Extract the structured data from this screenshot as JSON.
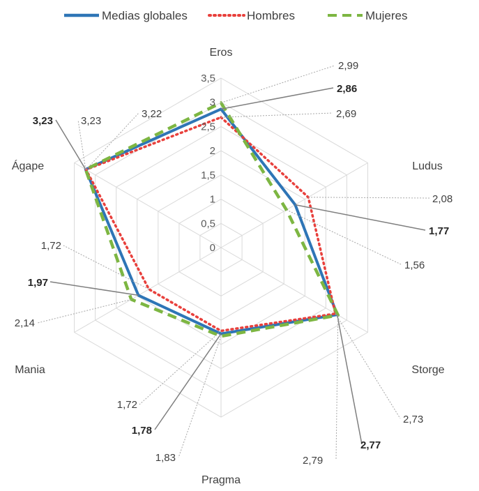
{
  "chart_data": {
    "type": "radar",
    "categories": [
      "Eros",
      "Ludus",
      "Storge",
      "Pragma",
      "Mania",
      "Ágape"
    ],
    "rlim": [
      0,
      3.5
    ],
    "ticks": [
      "0",
      "0,5",
      "1",
      "1,5",
      "2",
      "2,5",
      "3",
      "3,5"
    ],
    "grid": true,
    "legend_position": "top",
    "series": [
      {
        "name": "Medias globales",
        "values": [
          2.86,
          1.77,
          2.77,
          1.78,
          1.97,
          3.23
        ],
        "color": "#2E75B6",
        "style": "solid"
      },
      {
        "name": "Hombres",
        "values": [
          2.69,
          2.08,
          2.73,
          1.72,
          1.72,
          3.22
        ],
        "color": "#E8403C",
        "style": "dotted"
      },
      {
        "name": "Mujeres",
        "values": [
          2.99,
          1.56,
          2.79,
          1.83,
          2.14,
          3.23
        ],
        "color": "#7DB642",
        "style": "dashed"
      }
    ],
    "annotations": [
      {
        "category": "Eros",
        "series": "Mujeres",
        "text": "2,99",
        "bold": false
      },
      {
        "category": "Eros",
        "series": "Medias globales",
        "text": "2,86",
        "bold": true
      },
      {
        "category": "Eros",
        "series": "Hombres",
        "text": "2,69",
        "bold": false
      },
      {
        "category": "Ludus",
        "series": "Hombres",
        "text": "2,08",
        "bold": false
      },
      {
        "category": "Ludus",
        "series": "Medias globales",
        "text": "1,77",
        "bold": true
      },
      {
        "category": "Ludus",
        "series": "Mujeres",
        "text": "1,56",
        "bold": false
      },
      {
        "category": "Storge",
        "series": "Hombres",
        "text": "2,73",
        "bold": false
      },
      {
        "category": "Storge",
        "series": "Medias globales",
        "text": "2,77",
        "bold": true
      },
      {
        "category": "Storge",
        "series": "Mujeres",
        "text": "2,79",
        "bold": false
      },
      {
        "category": "Pragma",
        "series": "Hombres",
        "text": "1,72",
        "bold": false
      },
      {
        "category": "Pragma",
        "series": "Medias globales",
        "text": "1,78",
        "bold": true
      },
      {
        "category": "Pragma",
        "series": "Mujeres",
        "text": "1,83",
        "bold": false
      },
      {
        "category": "Mania",
        "series": "Hombres",
        "text": "1,72",
        "bold": false
      },
      {
        "category": "Mania",
        "series": "Medias globales",
        "text": "1,97",
        "bold": true
      },
      {
        "category": "Mania",
        "series": "Mujeres",
        "text": "2,14",
        "bold": false
      },
      {
        "category": "Ágape",
        "series": "Medias globales",
        "text": "3,23",
        "bold": true
      },
      {
        "category": "Ágape",
        "series": "Mujeres",
        "text": "3,23",
        "bold": false
      },
      {
        "category": "Ágape",
        "series": "Hombres",
        "text": "3,22",
        "bold": false
      }
    ]
  }
}
